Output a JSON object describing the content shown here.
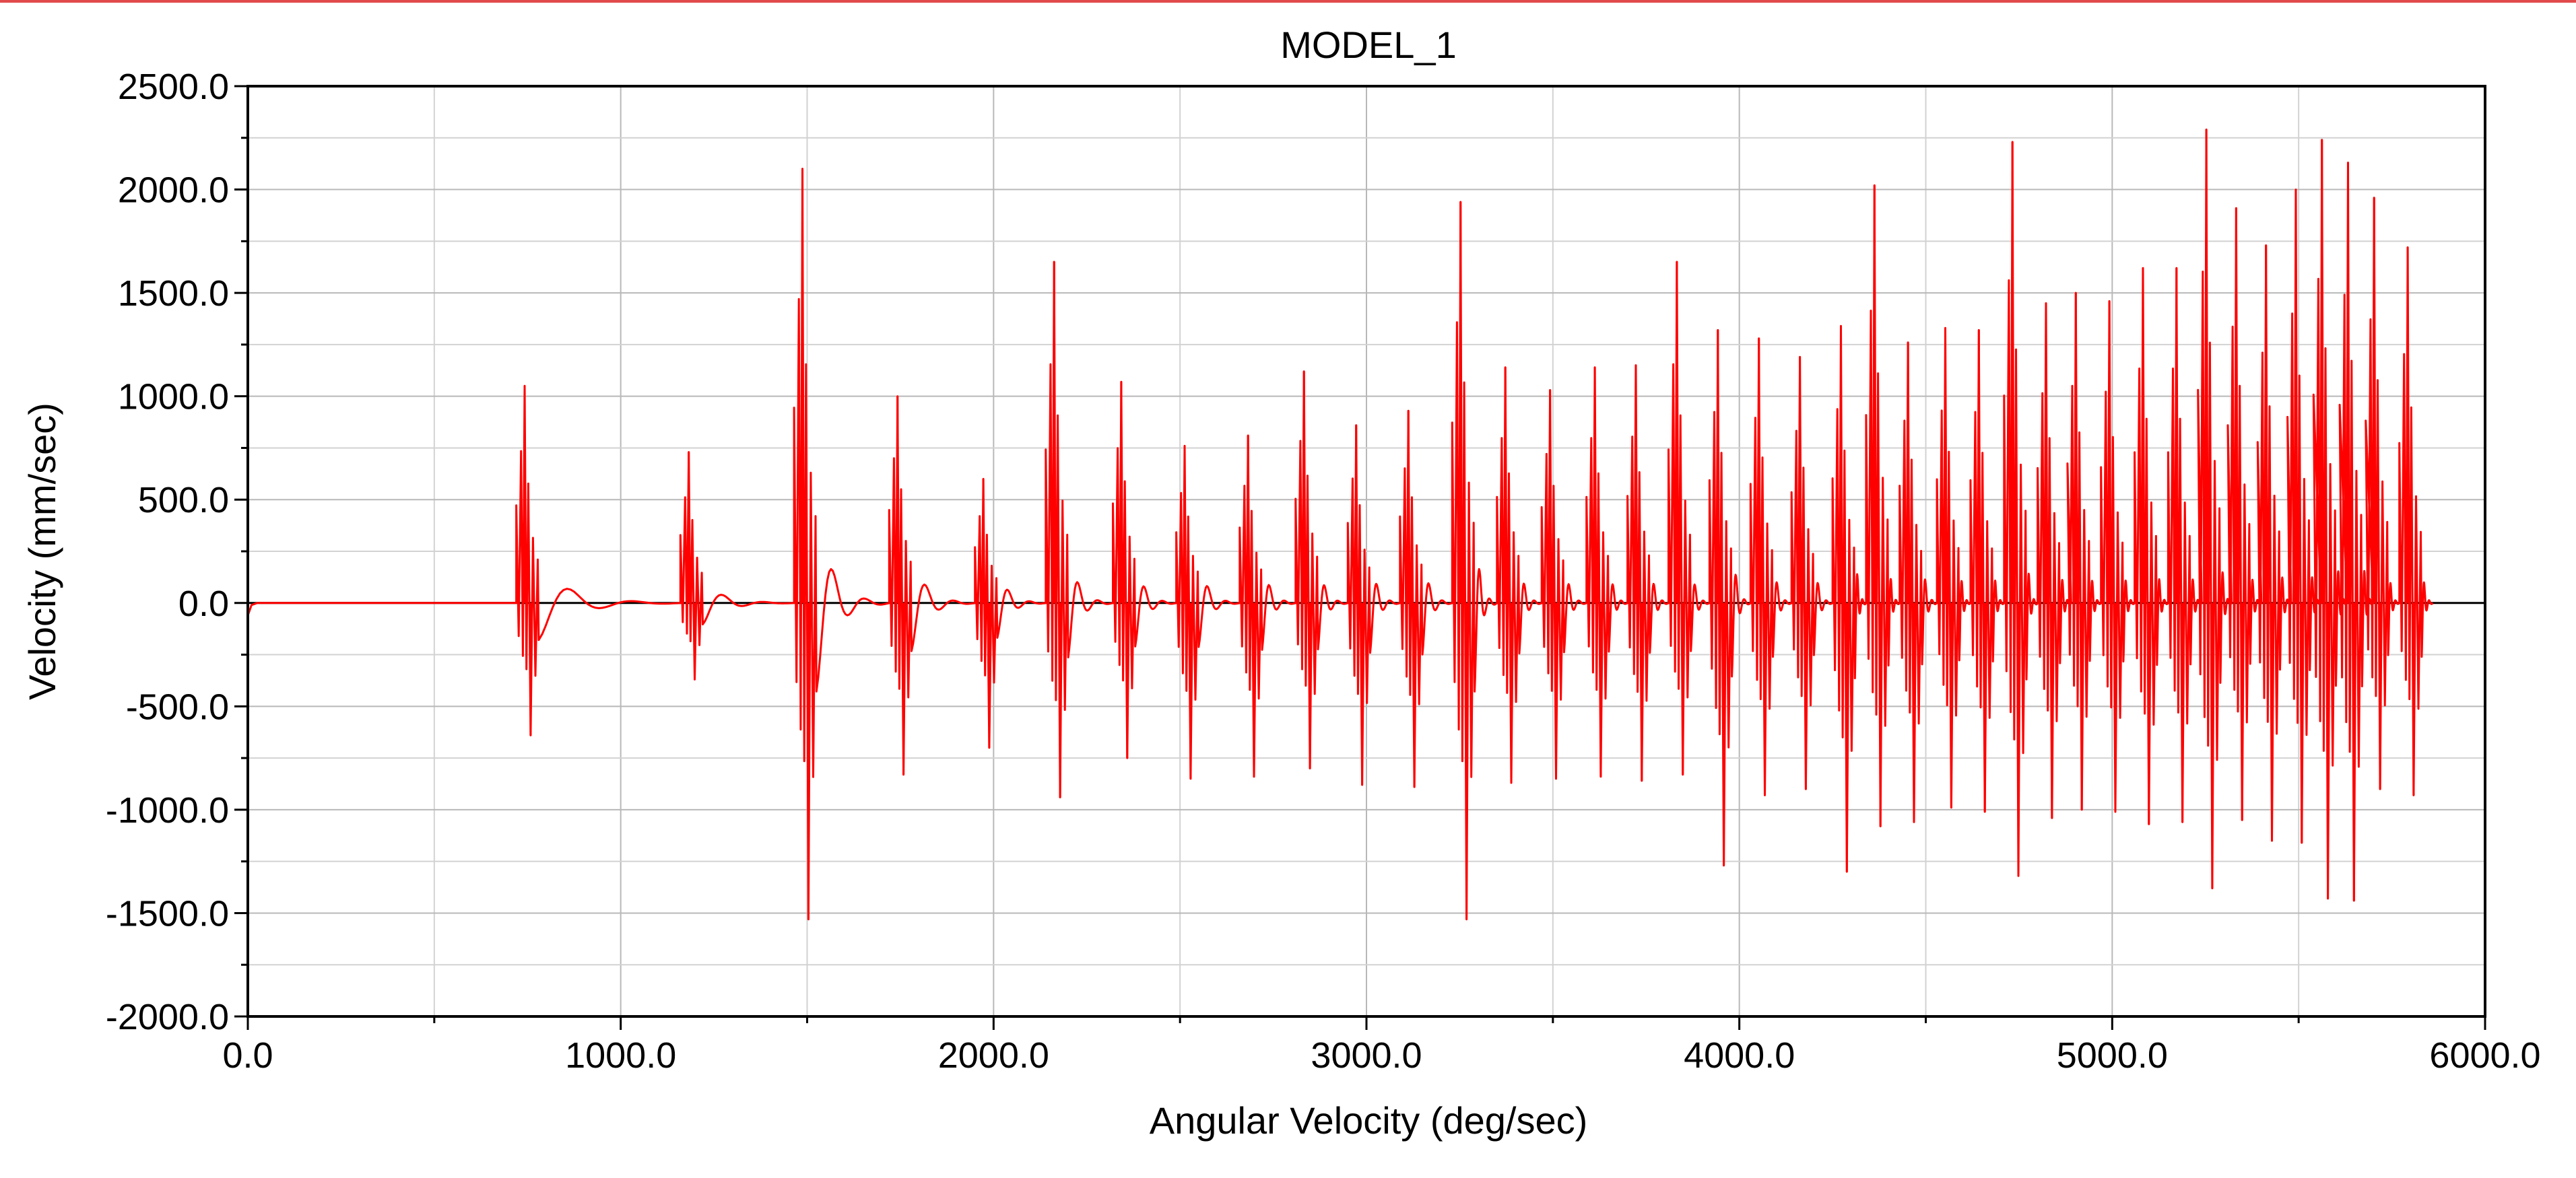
{
  "chart_data": {
    "type": "line",
    "title": "MODEL_1",
    "xlabel": "Angular Velocity (deg/sec)",
    "ylabel": "Velocity (mm/sec)",
    "xlim": [
      0.0,
      6000.0
    ],
    "ylim": [
      -2000.0,
      2500.0
    ],
    "x_ticks": [
      "0.0",
      "1000.0",
      "2000.0",
      "3000.0",
      "4000.0",
      "5000.0",
      "6000.0"
    ],
    "y_ticks": [
      "2500.0",
      "2000.0",
      "1500.0",
      "1000.0",
      "500.0",
      "0.0",
      "-500.0",
      "-1000.0",
      "-1500.0",
      "-2000.0"
    ],
    "x_tick_values": [
      0,
      1000,
      2000,
      3000,
      4000,
      5000,
      6000
    ],
    "y_tick_values": [
      2500,
      2000,
      1500,
      1000,
      500,
      0,
      -500,
      -1000,
      -1500,
      -2000
    ],
    "grid": true,
    "zero_line": true,
    "line_color": "#ff0000",
    "series": [
      {
        "name": "",
        "x_end": 5860,
        "impacts": [
          {
            "x": 760,
            "peak": 1050,
            "trough": -640
          },
          {
            "x": 1200,
            "peak": 730,
            "trough": -370
          },
          {
            "x": 1505,
            "peak": 2100,
            "trough": -1530
          },
          {
            "x": 1760,
            "peak": 1000,
            "trough": -830
          },
          {
            "x": 1990,
            "peak": 600,
            "trough": -700
          },
          {
            "x": 2180,
            "peak": 1650,
            "trough": -940
          },
          {
            "x": 2360,
            "peak": 1070,
            "trough": -750
          },
          {
            "x": 2530,
            "peak": 760,
            "trough": -850
          },
          {
            "x": 2700,
            "peak": 810,
            "trough": -840
          },
          {
            "x": 2850,
            "peak": 1120,
            "trough": -800
          },
          {
            "x": 2990,
            "peak": 860,
            "trough": -880
          },
          {
            "x": 3130,
            "peak": 930,
            "trough": -890
          },
          {
            "x": 3270,
            "peak": 1940,
            "trough": -1530
          },
          {
            "x": 3390,
            "peak": 1140,
            "trough": -870
          },
          {
            "x": 3510,
            "peak": 1030,
            "trough": -850
          },
          {
            "x": 3630,
            "peak": 1140,
            "trough": -840
          },
          {
            "x": 3740,
            "peak": 1150,
            "trough": -860
          },
          {
            "x": 3850,
            "peak": 1650,
            "trough": -830
          },
          {
            "x": 3960,
            "peak": 1320,
            "trough": -1270
          },
          {
            "x": 4070,
            "peak": 1280,
            "trough": -930
          },
          {
            "x": 4180,
            "peak": 1190,
            "trough": -900
          },
          {
            "x": 4290,
            "peak": 1340,
            "trough": -1300
          },
          {
            "x": 4380,
            "peak": 2020,
            "trough": -1080
          },
          {
            "x": 4470,
            "peak": 1260,
            "trough": -1060
          },
          {
            "x": 4570,
            "peak": 1330,
            "trough": -990
          },
          {
            "x": 4660,
            "peak": 1320,
            "trough": -1010
          },
          {
            "x": 4750,
            "peak": 2230,
            "trough": -1320
          },
          {
            "x": 4840,
            "peak": 1450,
            "trough": -1040
          },
          {
            "x": 4920,
            "peak": 1500,
            "trough": -1000
          },
          {
            "x": 5010,
            "peak": 1460,
            "trough": -1010
          },
          {
            "x": 5100,
            "peak": 1620,
            "trough": -1070
          },
          {
            "x": 5190,
            "peak": 1620,
            "trough": -1060
          },
          {
            "x": 5270,
            "peak": 2290,
            "trough": -1380
          },
          {
            "x": 5350,
            "peak": 1910,
            "trough": -1050
          },
          {
            "x": 5430,
            "peak": 1730,
            "trough": -1150
          },
          {
            "x": 5510,
            "peak": 2000,
            "trough": -1160
          },
          {
            "x": 5580,
            "peak": 2240,
            "trough": -1430
          },
          {
            "x": 5650,
            "peak": 2130,
            "trough": -1440
          },
          {
            "x": 5720,
            "peak": 1960,
            "trough": -900
          },
          {
            "x": 5810,
            "peak": 1720,
            "trough": -930
          }
        ]
      }
    ]
  }
}
